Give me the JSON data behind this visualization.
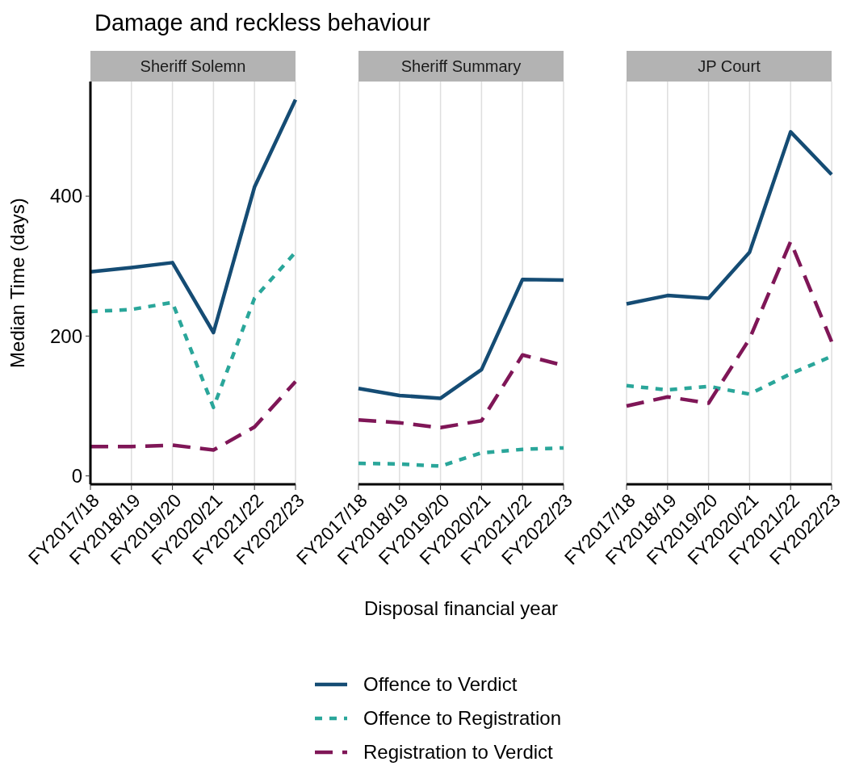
{
  "chart_data": [
    {
      "type": "line",
      "title": "Damage and reckless behaviour",
      "subtitle": "Sheriff Solemn",
      "ylabel": "Median Time (days)",
      "categories": [
        "FY2017/18",
        "FY2018/19",
        "FY2019/20",
        "FY2020/21",
        "FY2021/22",
        "FY2022/23"
      ],
      "ylim": [
        -12,
        564
      ],
      "yticks": [
        0,
        200,
        400
      ],
      "grid": "x",
      "legend": "bottom",
      "series": [
        {
          "name": "Offence to Verdict",
          "color": "#154c74",
          "line_style": "solid",
          "values": [
            292,
            298,
            305,
            205,
            413,
            538
          ]
        },
        {
          "name": "Offence to Registration",
          "color": "#2aa69a",
          "line_style": "dotted",
          "values": [
            235,
            238,
            248,
            98,
            254,
            320
          ]
        },
        {
          "name": "Registration to Verdict",
          "color": "#7f1657",
          "line_style": "dashed",
          "values": [
            42,
            42,
            44,
            37,
            70,
            135
          ]
        }
      ]
    },
    {
      "type": "line",
      "subtitle": "Sheriff Summary",
      "xlabel": "Disposal financial year",
      "categories": [
        "FY2017/18",
        "FY2018/19",
        "FY2019/20",
        "FY2020/21",
        "FY2021/22",
        "FY2022/23"
      ],
      "ylim": [
        -12,
        564
      ],
      "tick_labels": "x",
      "grid": "x",
      "series": [
        {
          "color": "#154c74",
          "line_style": "solid",
          "values": [
            125,
            115,
            111,
            152,
            281,
            280
          ]
        },
        {
          "color": "#2aa69a",
          "line_style": "dotted",
          "values": [
            18,
            17,
            14,
            33,
            38,
            40
          ]
        },
        {
          "color": "#7f1657",
          "line_style": "dashed",
          "values": [
            80,
            76,
            69,
            79,
            173,
            158
          ]
        }
      ]
    },
    {
      "type": "line",
      "subtitle": "JP Court",
      "categories": [
        "FY2017/18",
        "FY2018/19",
        "FY2019/20",
        "FY2020/21",
        "FY2021/22",
        "FY2022/23"
      ],
      "ylim": [
        -12,
        564
      ],
      "tick_labels": "x",
      "grid": "x",
      "series": [
        {
          "color": "#154c74",
          "line_style": "solid",
          "values": [
            246,
            258,
            254,
            320,
            492,
            431
          ]
        },
        {
          "color": "#2aa69a",
          "line_style": "dotted",
          "values": [
            129,
            123,
            128,
            117,
            146,
            171
          ]
        },
        {
          "color": "#7f1657",
          "line_style": "dashed",
          "values": [
            100,
            113,
            104,
            196,
            335,
            192
          ]
        }
      ]
    }
  ]
}
